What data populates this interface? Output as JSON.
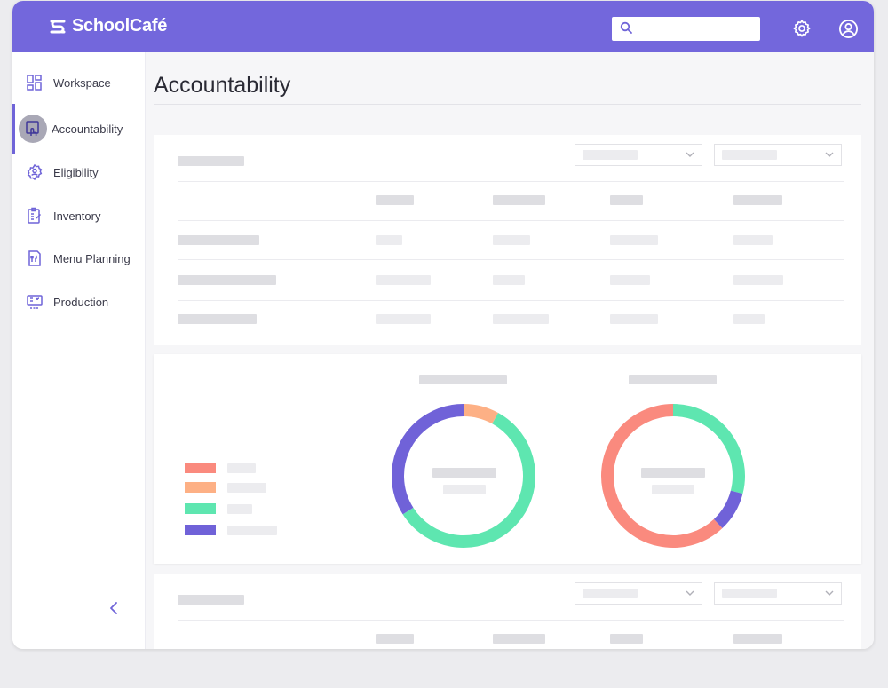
{
  "app": {
    "brand": "SchoolCafé"
  },
  "header": {
    "search": {
      "placeholder": "",
      "value": ""
    },
    "settings_icon": "gear-icon",
    "profile_icon": "user-circle-icon"
  },
  "sidebar": {
    "items": [
      {
        "label": "Workspace",
        "icon": "dashboard-grid-icon",
        "active": false
      },
      {
        "label": "Accountability",
        "icon": "touch-screen-icon",
        "active": true
      },
      {
        "label": "Eligibility",
        "icon": "badge-person-icon",
        "active": false
      },
      {
        "label": "Inventory",
        "icon": "clipboard-check-icon",
        "active": false
      },
      {
        "label": "Menu Planning",
        "icon": "menu-document-icon",
        "active": false
      },
      {
        "label": "Production",
        "icon": "production-board-icon",
        "active": false
      }
    ],
    "collapse_icon": "chevron-left-icon"
  },
  "page": {
    "title": "Accountability"
  },
  "colors": {
    "accent": "#7367dc",
    "chart_red": "#fa8a7e",
    "chart_orange": "#fdb085",
    "chart_green": "#5ee6b0",
    "chart_purple": "#7062d8"
  },
  "chart_data": [
    {
      "type": "pie",
      "title": "",
      "series": [
        {
          "color": "#fdb085",
          "values": [
            8
          ]
        },
        {
          "color": "#5ee6b0",
          "values": [
            58
          ]
        },
        {
          "color": "#7062d8",
          "values": [
            34
          ]
        }
      ],
      "values": [
        8,
        58,
        34
      ],
      "donut": true,
      "legend": "left"
    },
    {
      "type": "pie",
      "title": "",
      "values": [
        29,
        9,
        62
      ],
      "colors": [
        "#5ee6b0",
        "#7062d8",
        "#fa8a7e"
      ],
      "donut": true,
      "legend": "left"
    }
  ]
}
